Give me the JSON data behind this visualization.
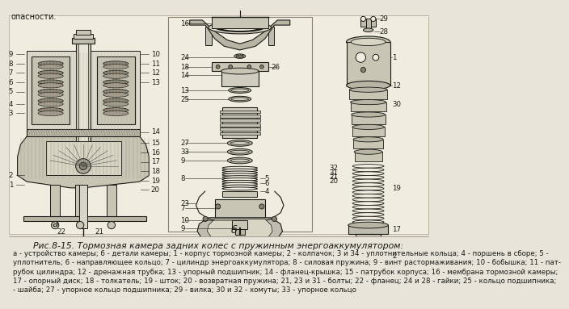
{
  "title": "Рис.8-15. Тормозная камера задних колес с пружинным энергоаккумулятором:",
  "caption_lines": [
    "а - устройство камеры; б - детали камеры; 1 - корпус тормозной камеры; 2 - колпачок; 3 и 34 - уплотнительные кольца; 4 - поршень в сборе; 5 -",
    "уплотнитель; 6 - направляющее кольцо; 7 - цилиндр энергоаккумулятора; 8 - силовая пружина; 9 - винт растормаживания; 10 - бобышка; 11 - пат-",
    "рубок цилиндра; 12 - дренажная трубка; 13 - упорный подшипник; 14 - фланец-крышка; 15 - патрубок корпуса; 16 - мембрана тормозной камеры;",
    "17 - опорный диск; 18 - толкатель; 19 - шток; 20 - возвратная пружина; 21, 23 и 31 - болты; 22 - фланец; 24 и 28 - гайки; 25 - кольцо подшипника;",
    "- шайба; 27 - упорное кольцо подшипника; 29 - вилка; 30 и 32 - хомуты; 33 - упорное кольцо"
  ],
  "bg_color": "#e8e4da",
  "page_color": "#f0ece0",
  "ink_color": "#1a1a14",
  "top_text": "опасности.",
  "title_fontsize": 7.8,
  "caption_fontsize": 6.2,
  "label_fontsize": 6.5
}
